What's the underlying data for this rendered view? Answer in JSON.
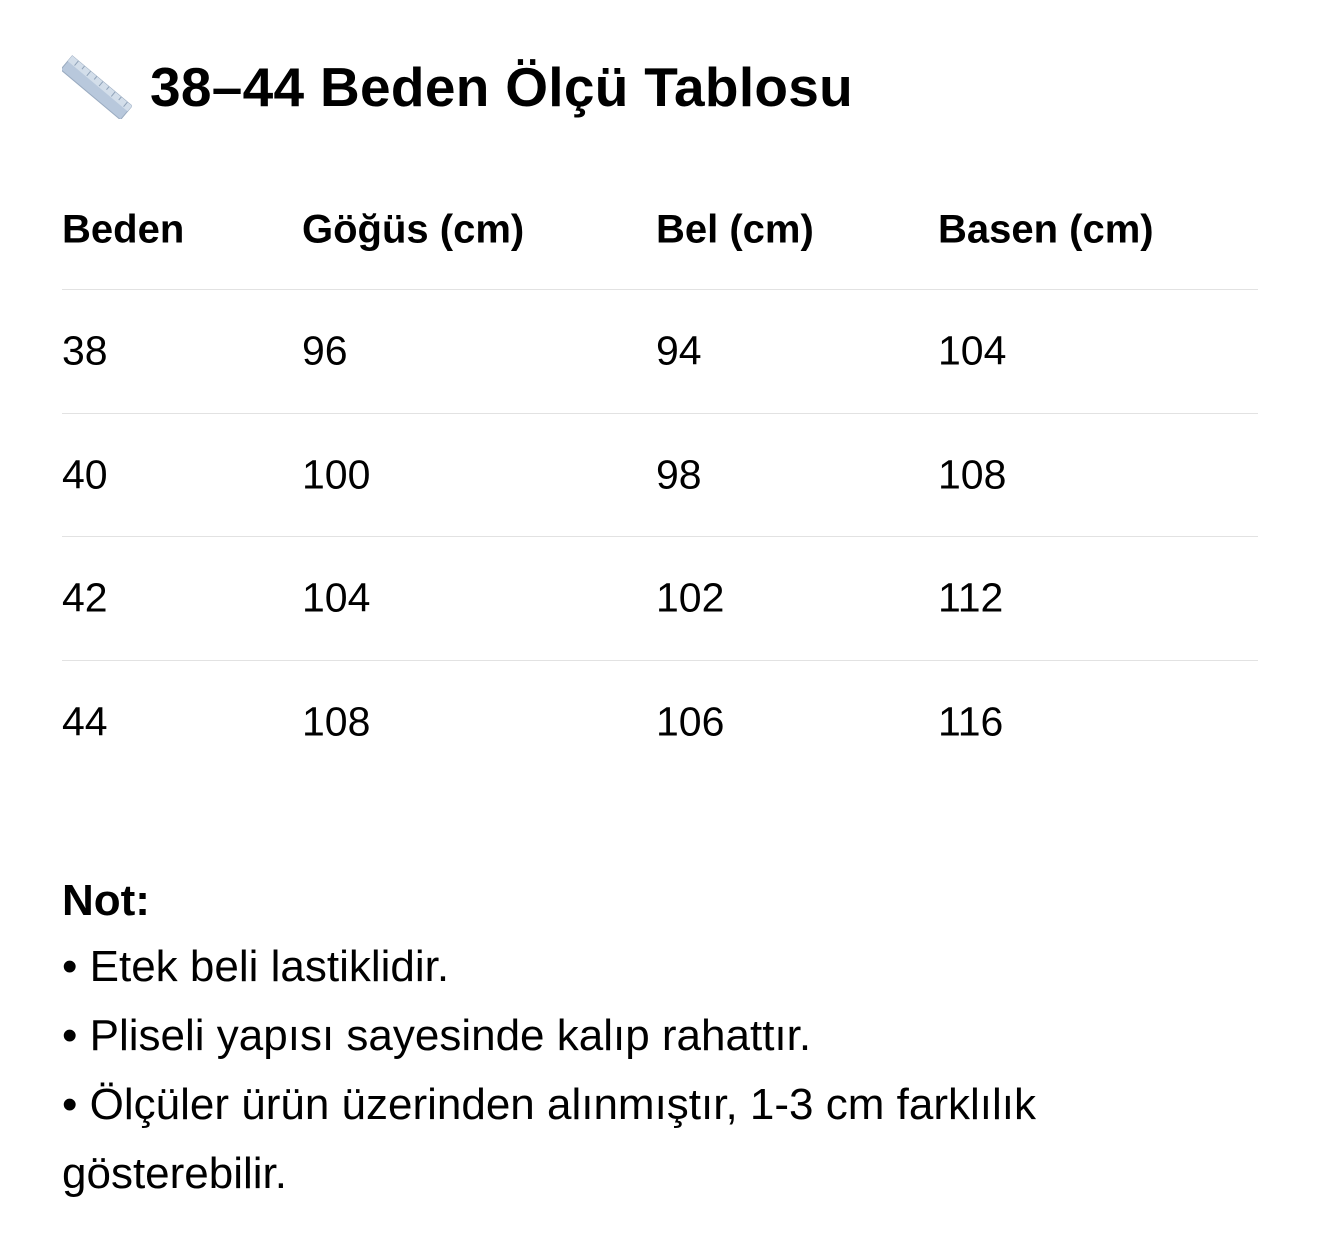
{
  "title": {
    "icon": "ruler-icon",
    "text": "38–44 Beden Ölçü Tablosu"
  },
  "table": {
    "headers": [
      "Beden",
      "Göğüs (cm)",
      "Bel (cm)",
      "Basen (cm)"
    ],
    "rows": [
      [
        "38",
        "96",
        "94",
        "104"
      ],
      [
        "40",
        "100",
        "98",
        "108"
      ],
      [
        "42",
        "104",
        "102",
        "112"
      ],
      [
        "44",
        "108",
        "106",
        "116"
      ]
    ]
  },
  "notes": {
    "heading": "Not:",
    "items": [
      "• Etek beli lastiklidir.",
      "• Pliseli yapısı sayesinde kalıp rahattır.",
      "• Ölçüler ürün üzerinden alınmıştır, 1-3 cm farklılık gösterebilir."
    ]
  },
  "colors": {
    "text": "#000000",
    "divider": "#e2e2e2",
    "ruler": "#b8c8dc"
  }
}
